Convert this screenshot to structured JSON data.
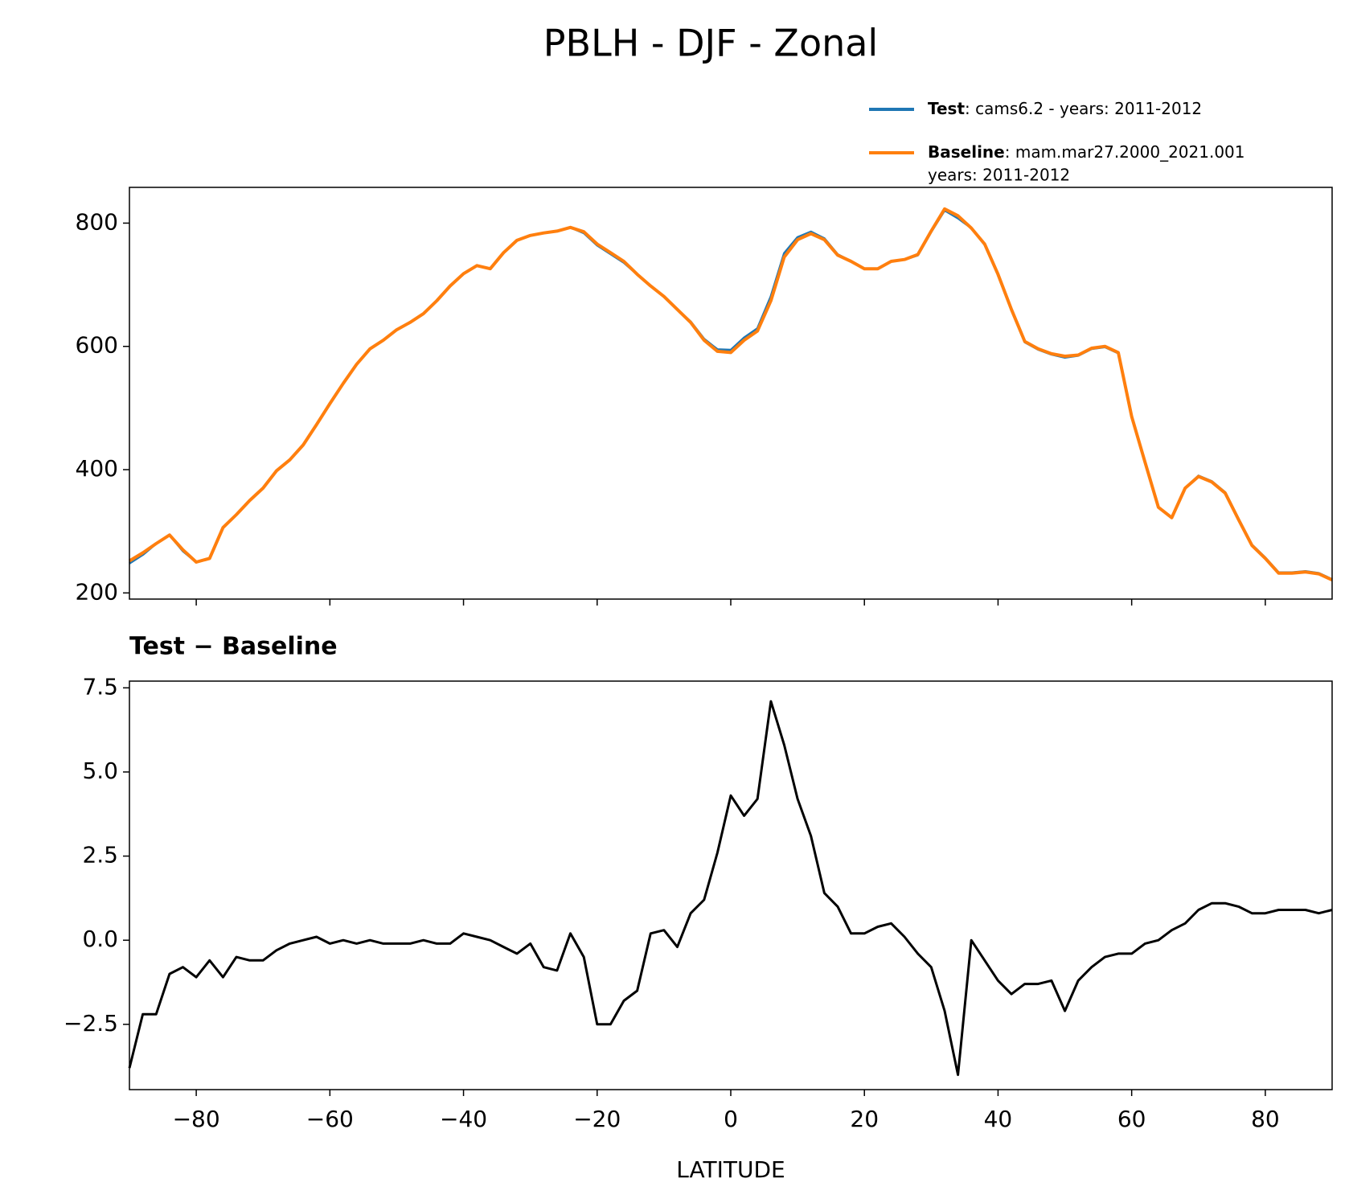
{
  "chart_data": [
    {
      "type": "line",
      "title": "PBLH - DJF - Zonal",
      "x": [
        -90,
        -88,
        -86,
        -84,
        -82,
        -80,
        -78,
        -76,
        -74,
        -72,
        -70,
        -68,
        -66,
        -64,
        -62,
        -60,
        -58,
        -56,
        -54,
        -52,
        -50,
        -48,
        -46,
        -44,
        -42,
        -40,
        -38,
        -36,
        -34,
        -32,
        -30,
        -28,
        -26,
        -24,
        -22,
        -20,
        -18,
        -16,
        -14,
        -12,
        -10,
        -8,
        -6,
        -4,
        -2,
        0,
        2,
        4,
        6,
        8,
        10,
        12,
        14,
        16,
        18,
        20,
        22,
        24,
        26,
        28,
        30,
        32,
        34,
        36,
        38,
        40,
        42,
        44,
        46,
        48,
        50,
        52,
        54,
        56,
        58,
        60,
        62,
        64,
        66,
        68,
        70,
        72,
        74,
        76,
        78,
        80,
        82,
        84,
        86,
        88,
        90
      ],
      "series": [
        {
          "name": "Test",
          "legend_text": [
            ": cams6.2 - years: 2011-2012"
          ],
          "color": "#1f77b4",
          "values": [
            248,
            262,
            280,
            294,
            268,
            250,
            256,
            306,
            327,
            350,
            370,
            398,
            416,
            440,
            473,
            507,
            540,
            571,
            596,
            610,
            627,
            639,
            653,
            674,
            698,
            718,
            731,
            726,
            752,
            772,
            780,
            784,
            787,
            793,
            784,
            764,
            750,
            736,
            717,
            698,
            681,
            660,
            640,
            612,
            595,
            594,
            614,
            629,
            681,
            751,
            777,
            786,
            775,
            749,
            738,
            726,
            726,
            738,
            741,
            748,
            786,
            821,
            808,
            792,
            765,
            716,
            659,
            607,
            595,
            587,
            582,
            585,
            596,
            599,
            589,
            486,
            412,
            339,
            322,
            370,
            390,
            381,
            363,
            320,
            278,
            257,
            233,
            233,
            235,
            232,
            222
          ]
        },
        {
          "name": "Baseline",
          "legend_text": [
            ": mam.mar27.2000_2021.001",
            "years: 2011-2012"
          ],
          "color": "#ff7f0e",
          "values": [
            252,
            265,
            280,
            294,
            270,
            250,
            256,
            306,
            327,
            350,
            370,
            398,
            416,
            440,
            473,
            507,
            540,
            571,
            596,
            610,
            627,
            639,
            653,
            674,
            698,
            718,
            731,
            726,
            752,
            772,
            780,
            784,
            787,
            793,
            786,
            766,
            752,
            738,
            717,
            698,
            681,
            660,
            639,
            610,
            592,
            590,
            610,
            625,
            674,
            745,
            773,
            783,
            773,
            748,
            738,
            726,
            726,
            738,
            741,
            749,
            787,
            823,
            812,
            792,
            766,
            717,
            660,
            608,
            596,
            588,
            584,
            586,
            597,
            600,
            590,
            486,
            412,
            339,
            322,
            370,
            389,
            380,
            362,
            319,
            277,
            256,
            232,
            232,
            234,
            231,
            221
          ]
        }
      ],
      "ylim": [
        190,
        858
      ],
      "yticks": [
        200,
        400,
        600,
        800
      ],
      "xlim": [
        -90,
        90
      ],
      "xticks": [
        -80,
        -60,
        -40,
        -20,
        0,
        20,
        40,
        60,
        80
      ],
      "legend": "upper right"
    },
    {
      "type": "line",
      "title": "Test − Baseline",
      "xlabel": "LATITUDE",
      "x": [
        -90,
        -88,
        -86,
        -84,
        -82,
        -80,
        -78,
        -76,
        -74,
        -72,
        -70,
        -68,
        -66,
        -64,
        -62,
        -60,
        -58,
        -56,
        -54,
        -52,
        -50,
        -48,
        -46,
        -44,
        -42,
        -40,
        -38,
        -36,
        -34,
        -32,
        -30,
        -28,
        -26,
        -24,
        -22,
        -20,
        -18,
        -16,
        -14,
        -12,
        -10,
        -8,
        -6,
        -4,
        -2,
        0,
        2,
        4,
        6,
        8,
        10,
        12,
        14,
        16,
        18,
        20,
        22,
        24,
        26,
        28,
        30,
        32,
        34,
        36,
        38,
        40,
        42,
        44,
        46,
        48,
        50,
        52,
        54,
        56,
        58,
        60,
        62,
        64,
        66,
        68,
        70,
        72,
        74,
        76,
        78,
        80,
        82,
        84,
        86,
        88,
        90
      ],
      "series": [
        {
          "name": "Test − Baseline",
          "color": "#000000",
          "values": [
            -3.8,
            -2.2,
            -2.2,
            -1.0,
            -0.8,
            -1.1,
            -0.6,
            -1.1,
            -0.5,
            -0.6,
            -0.6,
            -0.3,
            -0.1,
            0.0,
            0.1,
            -0.1,
            0.0,
            -0.1,
            0.0,
            -0.1,
            -0.1,
            -0.1,
            0.0,
            -0.1,
            -0.1,
            0.2,
            0.1,
            0.0,
            -0.2,
            -0.4,
            -0.1,
            -0.8,
            -0.9,
            0.2,
            -0.5,
            -2.5,
            -2.5,
            -1.8,
            -1.5,
            0.2,
            0.3,
            -0.2,
            0.8,
            1.2,
            2.6,
            4.3,
            3.7,
            4.2,
            7.1,
            5.8,
            4.2,
            3.1,
            1.4,
            1.0,
            0.2,
            0.2,
            0.4,
            0.5,
            0.1,
            -0.4,
            -0.8,
            -2.1,
            -4.0,
            0.0,
            -0.6,
            -1.2,
            -1.6,
            -1.3,
            -1.3,
            -1.2,
            -2.1,
            -1.2,
            -0.8,
            -0.5,
            -0.4,
            -0.4,
            -0.1,
            0.0,
            0.3,
            0.5,
            0.9,
            1.1,
            1.1,
            1.0,
            0.8,
            0.8,
            0.9,
            0.9,
            0.9,
            0.8,
            0.9
          ]
        }
      ],
      "ylim": [
        -4.44,
        7.7
      ],
      "yticks": [
        {
          "value": -2.5,
          "label": "−2.5"
        },
        {
          "value": 0,
          "label": "0.0"
        },
        2.5,
        {
          "value": 5,
          "label": "5.0"
        },
        7.5
      ],
      "xlim": [
        -90,
        90
      ],
      "xticks": [
        {
          "value": -80,
          "label": "−80"
        },
        {
          "value": -60,
          "label": "−60"
        },
        {
          "value": -40,
          "label": "−40"
        },
        {
          "value": -20,
          "label": "−20"
        },
        0,
        20,
        40,
        60,
        80
      ]
    }
  ]
}
